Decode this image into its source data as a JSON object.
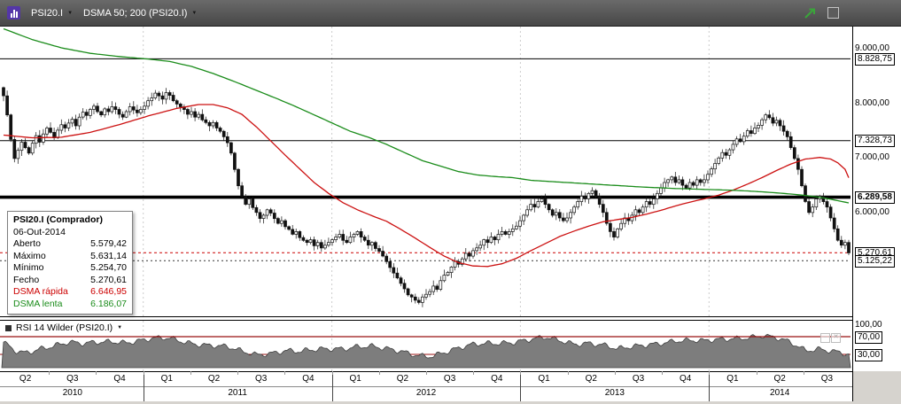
{
  "toolbar": {
    "symbol": "PSI20.I",
    "indicator": "DSMA 50; 200 (PSI20.I)"
  },
  "tooltip": {
    "title": "PSI20.I (Comprador)",
    "date": "06-Out-2014",
    "rows": [
      {
        "label": "Aberto",
        "value": "5.579,42"
      },
      {
        "label": "Máximo",
        "value": "5.631,14"
      },
      {
        "label": "Mínimo",
        "value": "5.254,70"
      },
      {
        "label": "Fecho",
        "value": "5.270,61"
      }
    ],
    "fast": {
      "label": "DSMA rápida",
      "value": "6.646,95"
    },
    "slow": {
      "label": "DSMA lenta",
      "value": "6.186,07"
    }
  },
  "price_axis": {
    "labels": [
      {
        "text": "9.000,00",
        "price": 9000,
        "boxed": false
      },
      {
        "text": "8.828,75",
        "price": 8828.75,
        "boxed": true
      },
      {
        "text": "8.000,00",
        "price": 8000,
        "boxed": false
      },
      {
        "text": "7.328,73",
        "price": 7328.73,
        "boxed": true
      },
      {
        "text": "7.000,00",
        "price": 7000,
        "boxed": false
      },
      {
        "text": "6.289,58",
        "price": 6289.58,
        "boxed": true,
        "bold": true
      },
      {
        "text": "6.000,00",
        "price": 6000,
        "boxed": false
      },
      {
        "text": "5.270,61",
        "price": 5270.61,
        "boxed": true
      },
      {
        "text": "5.125,22",
        "price": 5125.22,
        "boxed": true
      }
    ]
  },
  "rsi_panel": {
    "label": "RSI 14 Wilder (PSI20.I)",
    "axis": [
      {
        "text": "100,00",
        "value": 100,
        "boxed": false
      },
      {
        "text": "70,00",
        "value": 70,
        "boxed": true
      },
      {
        "text": "30,00",
        "value": 30,
        "boxed": true
      }
    ]
  },
  "x_axis": {
    "quarters": [
      "Q2",
      "Q3",
      "Q4",
      "Q1",
      "Q2",
      "Q3",
      "Q4",
      "Q1",
      "Q2",
      "Q3",
      "Q4",
      "Q1",
      "Q2",
      "Q3",
      "Q4",
      "Q1",
      "Q2",
      "Q3"
    ],
    "years": [
      {
        "label": "2010",
        "start": 0,
        "span": 3
      },
      {
        "label": "2011",
        "start": 3,
        "span": 4
      },
      {
        "label": "2012",
        "start": 7,
        "span": 4
      },
      {
        "label": "2013",
        "start": 11,
        "span": 4
      },
      {
        "label": "2014",
        "start": 15,
        "span": 3
      }
    ]
  },
  "chart_data": {
    "type": "candlestick",
    "title": "PSI20.I weekly candles with DSMA 50 / DSMA 200 overlays and RSI 14 Wilder sub-panel",
    "frequency": "weekly",
    "ylim": [
      4090,
      9420
    ],
    "first_open": 8300,
    "last_candle": {
      "open": 5579.42,
      "high": 5631.14,
      "low": 5254.7,
      "close": 5270.61,
      "date": "06-Out-2014"
    },
    "colors": {
      "fast": "#cc1111",
      "slow": "#1a8c1a",
      "rsi_fill": "#7d7d7d",
      "rsi_level": "#991111",
      "alert": "#cc0000"
    },
    "level_lines": [
      {
        "price": 8828.75,
        "color": "#000000",
        "width": 1,
        "dash": null
      },
      {
        "price": 7328.73,
        "color": "#000000",
        "width": 1,
        "dash": null
      },
      {
        "price": 6289.58,
        "color": "#000000",
        "width": 3.6,
        "dash": null
      },
      {
        "price": 5270.61,
        "color": "#cc0000",
        "width": 1,
        "dash": "3,3"
      },
      {
        "price": 5125.22,
        "color": "#333333",
        "width": 1,
        "dash": "2,3"
      }
    ],
    "weekly_closes": [
      8150,
      7800,
      7350,
      7000,
      7150,
      7300,
      7200,
      7100,
      7280,
      7420,
      7300,
      7450,
      7560,
      7480,
      7380,
      7520,
      7620,
      7560,
      7650,
      7720,
      7600,
      7760,
      7850,
      7790,
      7900,
      7960,
      7860,
      7800,
      7910,
      7860,
      7950,
      7900,
      7810,
      7760,
      7860,
      7950,
      7890,
      7840,
      7900,
      7960,
      8060,
      8110,
      8200,
      8150,
      8090,
      8210,
      8160,
      8060,
      8000,
      7950,
      7900,
      7810,
      7860,
      7760,
      7810,
      7710,
      7660,
      7600,
      7660,
      7560,
      7500,
      7400,
      7290,
      7100,
      6800,
      6500,
      6310,
      6160,
      6260,
      6100,
      6010,
      5900,
      5960,
      6060,
      6000,
      5900,
      5810,
      5860,
      5750,
      5700,
      5610,
      5660,
      5550,
      5500,
      5460,
      5510,
      5400,
      5460,
      5360,
      5410,
      5460,
      5510,
      5560,
      5610,
      5500,
      5460,
      5560,
      5610,
      5660,
      5560,
      5500,
      5410,
      5460,
      5350,
      5300,
      5210,
      5110,
      5000,
      4900,
      4810,
      4710,
      4610,
      4500,
      4460,
      4400,
      4360,
      4460,
      4510,
      4560,
      4660,
      4600,
      4760,
      4860,
      4910,
      5010,
      5110,
      5060,
      5160,
      5260,
      5210,
      5310,
      5360,
      5410,
      5510,
      5460,
      5560,
      5510,
      5610,
      5660,
      5610,
      5660,
      5710,
      5760,
      5860,
      5960,
      6060,
      6160,
      6110,
      6210,
      6260,
      6160,
      6060,
      5960,
      6010,
      5910,
      5860,
      5910,
      6010,
      6110,
      6210,
      6310,
      6260,
      6360,
      6410,
      6310,
      6160,
      6010,
      5810,
      5660,
      5560,
      5710,
      5810,
      5910,
      5860,
      5960,
      6060,
      6010,
      6110,
      6210,
      6160,
      6260,
      6360,
      6460,
      6560,
      6610,
      6660,
      6560,
      6610,
      6510,
      6460,
      6560,
      6510,
      6610,
      6560,
      6610,
      6710,
      6810,
      6910,
      7010,
      7110,
      7060,
      7160,
      7260,
      7360,
      7310,
      7410,
      7510,
      7460,
      7560,
      7610,
      7710,
      7800,
      7750,
      7650,
      7700,
      7600,
      7500,
      7400,
      7200,
      7000,
      6800,
      6500,
      6210,
      6010,
      6110,
      6260,
      6310,
      6210,
      6110,
      5910,
      5710,
      5500,
      5410,
      5460,
      5270.61
    ],
    "dsma_fast": [
      [
        0,
        7430
      ],
      [
        8,
        7380
      ],
      [
        16,
        7390
      ],
      [
        24,
        7480
      ],
      [
        32,
        7620
      ],
      [
        40,
        7780
      ],
      [
        48,
        7920
      ],
      [
        54,
        7990
      ],
      [
        58,
        7990
      ],
      [
        62,
        7930
      ],
      [
        66,
        7810
      ],
      [
        70,
        7580
      ],
      [
        74,
        7320
      ],
      [
        78,
        7060
      ],
      [
        82,
        6810
      ],
      [
        86,
        6560
      ],
      [
        90,
        6360
      ],
      [
        94,
        6190
      ],
      [
        98,
        6060
      ],
      [
        102,
        5950
      ],
      [
        106,
        5850
      ],
      [
        110,
        5700
      ],
      [
        114,
        5540
      ],
      [
        118,
        5370
      ],
      [
        122,
        5210
      ],
      [
        126,
        5090
      ],
      [
        130,
        5030
      ],
      [
        134,
        5020
      ],
      [
        138,
        5070
      ],
      [
        142,
        5170
      ],
      [
        146,
        5310
      ],
      [
        150,
        5440
      ],
      [
        154,
        5570
      ],
      [
        158,
        5670
      ],
      [
        162,
        5760
      ],
      [
        166,
        5840
      ],
      [
        170,
        5880
      ],
      [
        174,
        5920
      ],
      [
        178,
        5980
      ],
      [
        182,
        6050
      ],
      [
        186,
        6130
      ],
      [
        190,
        6200
      ],
      [
        194,
        6260
      ],
      [
        198,
        6330
      ],
      [
        202,
        6420
      ],
      [
        206,
        6530
      ],
      [
        210,
        6650
      ],
      [
        214,
        6780
      ],
      [
        218,
        6900
      ],
      [
        222,
        6990
      ],
      [
        226,
        7020
      ],
      [
        229,
        6990
      ],
      [
        231,
        6920
      ],
      [
        233,
        6800
      ],
      [
        234,
        6646.95
      ]
    ],
    "dsma_slow": [
      [
        0,
        9380
      ],
      [
        8,
        9180
      ],
      [
        16,
        9030
      ],
      [
        24,
        8930
      ],
      [
        32,
        8870
      ],
      [
        40,
        8825
      ],
      [
        46,
        8780
      ],
      [
        52,
        8690
      ],
      [
        58,
        8560
      ],
      [
        64,
        8410
      ],
      [
        70,
        8250
      ],
      [
        76,
        8090
      ],
      [
        81,
        7950
      ],
      [
        86,
        7800
      ],
      [
        91,
        7650
      ],
      [
        96,
        7500
      ],
      [
        101,
        7390
      ],
      [
        106,
        7260
      ],
      [
        111,
        7110
      ],
      [
        116,
        6960
      ],
      [
        121,
        6860
      ],
      [
        126,
        6760
      ],
      [
        131,
        6700
      ],
      [
        136,
        6670
      ],
      [
        141,
        6650
      ],
      [
        146,
        6600
      ],
      [
        151,
        6580
      ],
      [
        156,
        6560
      ],
      [
        161,
        6540
      ],
      [
        166,
        6520
      ],
      [
        171,
        6500
      ],
      [
        176,
        6480
      ],
      [
        181,
        6465
      ],
      [
        186,
        6450
      ],
      [
        191,
        6440
      ],
      [
        196,
        6430
      ],
      [
        201,
        6420
      ],
      [
        206,
        6405
      ],
      [
        211,
        6385
      ],
      [
        216,
        6360
      ],
      [
        221,
        6330
      ],
      [
        226,
        6290
      ],
      [
        230,
        6240
      ],
      [
        234,
        6186.07
      ]
    ],
    "rsi": [
      [
        0,
        55
      ],
      [
        3,
        38
      ],
      [
        6,
        35
      ],
      [
        10,
        45
      ],
      [
        14,
        50
      ],
      [
        18,
        55
      ],
      [
        22,
        52
      ],
      [
        26,
        58
      ],
      [
        30,
        62
      ],
      [
        34,
        58
      ],
      [
        38,
        60
      ],
      [
        42,
        64
      ],
      [
        46,
        66
      ],
      [
        50,
        60
      ],
      [
        54,
        55
      ],
      [
        58,
        50
      ],
      [
        62,
        45
      ],
      [
        66,
        35
      ],
      [
        70,
        30
      ],
      [
        74,
        35
      ],
      [
        78,
        40
      ],
      [
        82,
        35
      ],
      [
        86,
        38
      ],
      [
        90,
        42
      ],
      [
        94,
        45
      ],
      [
        98,
        50
      ],
      [
        102,
        48
      ],
      [
        106,
        40
      ],
      [
        110,
        35
      ],
      [
        114,
        30
      ],
      [
        118,
        28
      ],
      [
        122,
        35
      ],
      [
        126,
        42
      ],
      [
        130,
        50
      ],
      [
        134,
        55
      ],
      [
        138,
        58
      ],
      [
        142,
        60
      ],
      [
        146,
        63
      ],
      [
        150,
        66
      ],
      [
        154,
        60
      ],
      [
        158,
        55
      ],
      [
        162,
        58
      ],
      [
        166,
        52
      ],
      [
        170,
        40
      ],
      [
        174,
        45
      ],
      [
        178,
        52
      ],
      [
        182,
        58
      ],
      [
        186,
        62
      ],
      [
        190,
        60
      ],
      [
        194,
        58
      ],
      [
        198,
        63
      ],
      [
        202,
        68
      ],
      [
        206,
        70
      ],
      [
        210,
        72
      ],
      [
        214,
        65
      ],
      [
        218,
        55
      ],
      [
        222,
        40
      ],
      [
        226,
        45
      ],
      [
        230,
        38
      ],
      [
        234,
        28
      ]
    ]
  }
}
